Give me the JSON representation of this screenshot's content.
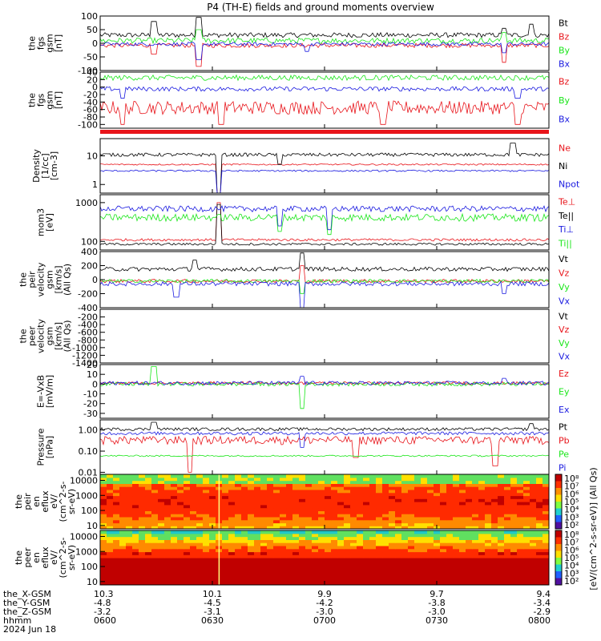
{
  "title": "P4 (TH-E) fields and ground moments overview",
  "colors": {
    "black": "#000000",
    "red": "#e8141a",
    "green": "#19e619",
    "blue": "#1a1ae0"
  },
  "chart_data": [
    {
      "type": "line",
      "panel": "fgs_gsm",
      "ylabel": [
        "the",
        "fgs",
        "gsm",
        "[nT]"
      ],
      "ylim": [
        -100,
        100
      ],
      "yticks": [
        100,
        50,
        0,
        -50,
        -100
      ],
      "series": [
        {
          "name": "Bt",
          "color": "black",
          "base": 30,
          "noise": 9,
          "spikes": [
            [
              0.12,
              80
            ],
            [
              0.22,
              95
            ],
            [
              0.96,
              70
            ],
            [
              0.9,
              55
            ]
          ]
        },
        {
          "name": "Bz",
          "color": "red",
          "base": -8,
          "noise": 8,
          "spikes": [
            [
              0.22,
              -85
            ],
            [
              0.9,
              -70
            ],
            [
              0.12,
              -40
            ]
          ]
        },
        {
          "name": "By",
          "color": "green",
          "base": 10,
          "noise": 10,
          "spikes": [
            [
              0.22,
              50
            ],
            [
              0.9,
              40
            ]
          ]
        },
        {
          "name": "Bx",
          "color": "blue",
          "base": -3,
          "noise": 7,
          "spikes": [
            [
              0.22,
              -60
            ],
            [
              0.46,
              -30
            ],
            [
              0.9,
              -35
            ]
          ]
        }
      ]
    },
    {
      "type": "line",
      "panel": "fgs_gsm_2",
      "ylabel": [
        "the",
        "fgs",
        "gsm",
        "[nT]"
      ],
      "ylim": [
        -110,
        40
      ],
      "yticks": [
        40,
        20,
        0,
        -20,
        -40,
        -60,
        -80,
        -100
      ],
      "series": [
        {
          "name": "Bz",
          "color": "red",
          "base": -55,
          "noise": 18,
          "spikes": [
            [
              0.05,
              -100
            ],
            [
              0.27,
              -100
            ],
            [
              0.63,
              -100
            ],
            [
              0.93,
              -100
            ]
          ]
        },
        {
          "name": "By",
          "color": "green",
          "base": 25,
          "noise": 7,
          "spikes": []
        },
        {
          "name": "Bx",
          "color": "blue",
          "base": -5,
          "noise": 6,
          "spikes": [
            [
              0.05,
              -30
            ],
            [
              0.93,
              -30
            ]
          ]
        }
      ]
    },
    {
      "type": "line",
      "panel": "density",
      "ylabel": [
        "Density",
        "[1/cc]",
        "[cm-3]"
      ],
      "log": true,
      "ylim": [
        0.5,
        40
      ],
      "yticks": [
        10,
        1
      ],
      "series": [
        {
          "name": "Ne",
          "color": "red",
          "base": 5,
          "noise": 0.3,
          "spikes": [
            [
              0.265,
              0.3
            ]
          ]
        },
        {
          "name": "Ni",
          "color": "black",
          "base": 11,
          "noise": 1.5,
          "spikes": [
            [
              0.265,
              0.3
            ],
            [
              0.4,
              5
            ],
            [
              0.92,
              28
            ]
          ]
        },
        {
          "name": "Npot",
          "color": "blue",
          "base": 3,
          "noise": 0.2,
          "spikes": [
            [
              0.265,
              0.3
            ]
          ]
        }
      ]
    },
    {
      "type": "line",
      "panel": "temperature",
      "ylabel": [
        "mom3",
        "[eV]"
      ],
      "log": true,
      "ylim": [
        60,
        1600
      ],
      "yticks": [
        1000,
        100
      ],
      "series": [
        {
          "name": "Te⊥",
          "color": "red",
          "base": 110,
          "noise": 8,
          "spikes": [
            [
              0.265,
              1000
            ]
          ]
        },
        {
          "name": "Te||",
          "color": "black",
          "base": 85,
          "noise": 6,
          "spikes": [
            [
              0.265,
              900
            ]
          ]
        },
        {
          "name": "Ti⊥",
          "color": "blue",
          "base": 700,
          "noise": 120,
          "spikes": [
            [
              0.4,
              250
            ],
            [
              0.51,
              200
            ]
          ]
        },
        {
          "name": "Ti||",
          "color": "green",
          "base": 420,
          "noise": 90,
          "spikes": [
            [
              0.4,
              180
            ],
            [
              0.51,
              150
            ]
          ]
        }
      ]
    },
    {
      "type": "line",
      "panel": "peir_velocity",
      "ylabel": [
        "the",
        "peir",
        "velocity",
        "gsm",
        "[km/s]",
        "(All Qs)"
      ],
      "ylim": [
        -400,
        400
      ],
      "yticks": [
        400,
        200,
        0,
        -200,
        -400
      ],
      "series": [
        {
          "name": "Vt",
          "color": "black",
          "base": 150,
          "noise": 30,
          "spikes": [
            [
              0.45,
              380
            ],
            [
              0.21,
              280
            ]
          ]
        },
        {
          "name": "Vz",
          "color": "red",
          "base": -20,
          "noise": 25,
          "spikes": [
            [
              0.45,
              200
            ]
          ]
        },
        {
          "name": "Vy",
          "color": "green",
          "base": -20,
          "noise": 25,
          "spikes": [
            [
              0.45,
              -200
            ]
          ]
        },
        {
          "name": "Vx",
          "color": "blue",
          "base": -60,
          "noise": 30,
          "spikes": [
            [
              0.45,
              -400
            ],
            [
              0.17,
              -250
            ],
            [
              0.9,
              -200
            ]
          ]
        }
      ]
    },
    {
      "type": "line",
      "panel": "peer_velocity",
      "ylabel": [
        "the",
        "peer",
        "velocity",
        "gsm",
        "[km/s]",
        "(All Qs)"
      ],
      "ylim": [
        -1400,
        0
      ],
      "yticks": [
        -200,
        -400,
        -600,
        -800,
        -1000,
        -1200,
        -1400
      ],
      "series": [
        {
          "name": "Vt",
          "color": "black",
          "base": null,
          "noise": 0,
          "spikes": []
        },
        {
          "name": "Vz",
          "color": "red",
          "base": null,
          "noise": 0,
          "spikes": []
        },
        {
          "name": "Vy",
          "color": "green",
          "base": null,
          "noise": 0,
          "spikes": []
        },
        {
          "name": "Vx",
          "color": "blue",
          "base": null,
          "noise": 0,
          "spikes": []
        }
      ]
    },
    {
      "type": "line",
      "panel": "efield",
      "ylabel": [
        "E=-VxB",
        "[mV/m]"
      ],
      "ylim": [
        -35,
        20
      ],
      "yticks": [
        20,
        10,
        0,
        -10,
        -20,
        -30
      ],
      "series": [
        {
          "name": "Ez",
          "color": "red",
          "base": 1,
          "noise": 1.5,
          "spikes": []
        },
        {
          "name": "Ey",
          "color": "green",
          "base": 0,
          "noise": 2,
          "spikes": [
            [
              0.12,
              18
            ],
            [
              0.45,
              -25
            ]
          ]
        },
        {
          "name": "Ex",
          "color": "blue",
          "base": 1,
          "noise": 2,
          "spikes": [
            [
              0.45,
              8
            ],
            [
              0.9,
              6
            ]
          ]
        }
      ]
    },
    {
      "type": "line",
      "panel": "pressure",
      "ylabel": [
        "Pressure",
        "[nPa]"
      ],
      "log": true,
      "ylim": [
        0.008,
        3
      ],
      "yticks": [
        1.0,
        0.1,
        0.01
      ],
      "yticklabels": [
        "1.00",
        "0.10",
        "0.01"
      ],
      "series": [
        {
          "name": "Pt",
          "color": "black",
          "base": 1.1,
          "noise": 0.18,
          "spikes": [
            [
              0.12,
              2.3
            ],
            [
              0.96,
              2.0
            ]
          ]
        },
        {
          "name": "Pb",
          "color": "red",
          "base": 0.35,
          "noise": 0.15,
          "spikes": [
            [
              0.2,
              0.01
            ],
            [
              0.88,
              0.02
            ],
            [
              0.57,
              0.05
            ]
          ]
        },
        {
          "name": "Pe",
          "color": "green",
          "base": 0.06,
          "noise": 0.005,
          "spikes": []
        },
        {
          "name": "Pi",
          "color": "blue",
          "base": 0.7,
          "noise": 0.12,
          "spikes": [
            [
              0.45,
              0.15
            ]
          ]
        }
      ]
    },
    {
      "type": "heatmap",
      "panel": "peir_en_eflux",
      "ylabel": [
        "the",
        "peir",
        "en",
        "eflux",
        "eV/",
        "(cm^2-s-",
        "sr-eV)"
      ],
      "log": true,
      "ylim": [
        6,
        25000
      ],
      "yticks": [
        10000,
        1000,
        100,
        10
      ],
      "yticklabels": [
        "10000",
        "1000",
        "100",
        "10"
      ]
    },
    {
      "type": "heatmap",
      "panel": "peer_en_eflux",
      "ylabel": [
        "the",
        "peer",
        "en",
        "eflux",
        "eV/",
        "(cm^2-s-",
        "sr-eV)"
      ],
      "log": true,
      "ylim": [
        6,
        25000
      ],
      "yticks": [
        10000,
        1000,
        100,
        10
      ],
      "yticklabels": [
        "10000",
        "1000",
        "100",
        "10"
      ]
    }
  ],
  "colorbar": {
    "label": "[eV/(cm^2-s-sr-eV)] (All Qs)",
    "ticks_upper": [
      "10⁸",
      "10⁷",
      "10⁶",
      "10⁵",
      "10⁴",
      "10³",
      "10²"
    ],
    "ticks_lower": [
      "10⁸",
      "10⁷",
      "10⁶",
      "10⁵",
      "10⁴",
      "10³",
      "10²"
    ]
  },
  "x_axis": {
    "row_labels": [
      "the_X-GSM",
      "the_Y-GSM",
      "the_Z-GSM",
      "hhmm",
      "2024 Jun 18"
    ],
    "ticks": [
      {
        "frac": 0.0,
        "x_gsm": "10.3",
        "y_gsm": "-4.8",
        "z_gsm": "-3.2",
        "hhmm": "0600"
      },
      {
        "frac": 0.25,
        "x_gsm": "10.1",
        "y_gsm": "-4.5",
        "z_gsm": "-3.1",
        "hhmm": "0630"
      },
      {
        "frac": 0.5,
        "x_gsm": "9.9",
        "y_gsm": "-4.2",
        "z_gsm": "-3.0",
        "hhmm": "0700"
      },
      {
        "frac": 0.75,
        "x_gsm": "9.7",
        "y_gsm": "-3.8",
        "z_gsm": "-3.0",
        "hhmm": "0730"
      },
      {
        "frac": 1.0,
        "x_gsm": "9.4",
        "y_gsm": "-3.4",
        "z_gsm": "-2.9",
        "hhmm": "0800"
      }
    ]
  }
}
